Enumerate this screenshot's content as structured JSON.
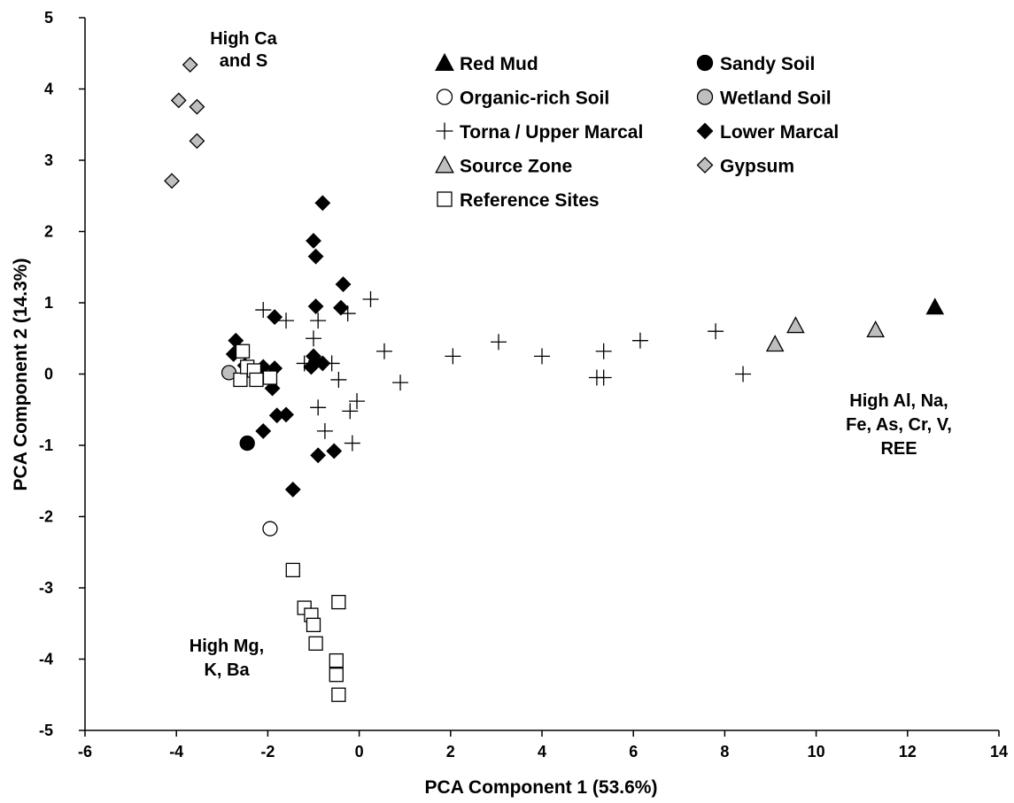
{
  "chart_data": {
    "type": "scatter",
    "title": "",
    "xlabel": "PCA Component 1 (53.6%)",
    "ylabel": "PCA Component 2 (14.3%)",
    "xlim": [
      -6,
      14
    ],
    "ylim": [
      -5,
      5
    ],
    "xticks": [
      -6,
      -4,
      -2,
      0,
      2,
      4,
      6,
      8,
      10,
      12,
      14
    ],
    "yticks": [
      -5,
      -4,
      -3,
      -2,
      -1,
      0,
      1,
      2,
      3,
      4,
      5
    ],
    "xtick_labels": [
      "-6",
      "-4",
      "-2",
      "0",
      "2",
      "4",
      "6",
      "8",
      "10",
      "12",
      "14"
    ],
    "ytick_labels": [
      "-5",
      "-4",
      "-3",
      "-2",
      "-1",
      "0",
      "1",
      "2",
      "3",
      "4",
      "5"
    ],
    "grid": false,
    "legend_position": "top-center",
    "series": [
      {
        "name": "Red Mud",
        "marker": "triangle",
        "fill": "#000000",
        "stroke": "#000000",
        "points": [
          [
            12.6,
            0.94
          ]
        ]
      },
      {
        "name": "Sandy Soil",
        "marker": "circle",
        "fill": "#000000",
        "stroke": "#000000",
        "points": [
          [
            -2.45,
            -0.97
          ]
        ]
      },
      {
        "name": "Organic-rich Soil",
        "marker": "circle",
        "fill": "#ffffff",
        "stroke": "#000000",
        "points": [
          [
            -1.95,
            -2.17
          ]
        ]
      },
      {
        "name": "Wetland Soil",
        "marker": "circle",
        "fill": "#bfbfbf",
        "stroke": "#000000",
        "points": [
          [
            -2.85,
            0.02
          ]
        ]
      },
      {
        "name": "Torna / Upper Marcal",
        "marker": "plus",
        "fill": "none",
        "stroke": "#000000",
        "points": [
          [
            -2.1,
            0.9
          ],
          [
            -1.6,
            0.75
          ],
          [
            -0.9,
            0.75
          ],
          [
            -0.25,
            0.85
          ],
          [
            0.25,
            1.05
          ],
          [
            -1.0,
            0.5
          ],
          [
            -1.2,
            0.15
          ],
          [
            -0.6,
            0.15
          ],
          [
            -0.45,
            -0.08
          ],
          [
            -0.9,
            -0.47
          ],
          [
            -0.75,
            -0.8
          ],
          [
            -0.2,
            -0.52
          ],
          [
            -0.05,
            -0.38
          ],
          [
            -0.15,
            -0.97
          ],
          [
            0.55,
            0.32
          ],
          [
            0.9,
            -0.12
          ],
          [
            2.05,
            0.25
          ],
          [
            3.05,
            0.45
          ],
          [
            4.0,
            0.25
          ],
          [
            5.2,
            -0.05
          ],
          [
            5.35,
            -0.05
          ],
          [
            5.35,
            0.32
          ],
          [
            6.15,
            0.47
          ],
          [
            7.8,
            0.6
          ],
          [
            8.4,
            0.0
          ]
        ]
      },
      {
        "name": "Lower Marcal",
        "marker": "diamond",
        "fill": "#000000",
        "stroke": "#000000",
        "points": [
          [
            -2.7,
            0.47
          ],
          [
            -2.75,
            0.28
          ],
          [
            -2.5,
            0.12
          ],
          [
            -2.35,
            0.02
          ],
          [
            -2.1,
            0.1
          ],
          [
            -1.9,
            -0.2
          ],
          [
            -1.85,
            0.08
          ],
          [
            -1.85,
            0.8
          ],
          [
            -1.8,
            -0.58
          ],
          [
            -1.6,
            -0.57
          ],
          [
            -2.1,
            -0.8
          ],
          [
            -1.45,
            -1.62
          ],
          [
            -1.0,
            0.25
          ],
          [
            -1.05,
            0.1
          ],
          [
            -0.95,
            0.18
          ],
          [
            -0.8,
            0.15
          ],
          [
            -0.95,
            0.95
          ],
          [
            -0.95,
            1.65
          ],
          [
            -1.0,
            1.87
          ],
          [
            -0.8,
            2.4
          ],
          [
            -0.35,
            1.26
          ],
          [
            -0.4,
            0.93
          ],
          [
            -0.9,
            -1.14
          ],
          [
            -0.55,
            -1.08
          ]
        ]
      },
      {
        "name": "Source Zone",
        "marker": "triangle",
        "fill": "#bfbfbf",
        "stroke": "#000000",
        "points": [
          [
            9.1,
            0.42
          ],
          [
            9.55,
            0.68
          ],
          [
            11.3,
            0.62
          ]
        ]
      },
      {
        "name": "Gypsum",
        "marker": "diamond",
        "fill": "#bfbfbf",
        "stroke": "#000000",
        "points": [
          [
            -3.7,
            4.34
          ],
          [
            -3.95,
            3.84
          ],
          [
            -3.55,
            3.75
          ],
          [
            -3.55,
            3.27
          ],
          [
            -4.1,
            2.71
          ]
        ]
      },
      {
        "name": "Reference Sites",
        "marker": "square",
        "fill": "#ffffff",
        "stroke": "#000000",
        "points": [
          [
            -2.55,
            0.32
          ],
          [
            -2.6,
            -0.08
          ],
          [
            -2.45,
            0.1
          ],
          [
            -2.3,
            0.05
          ],
          [
            -2.25,
            -0.08
          ],
          [
            -1.95,
            -0.05
          ],
          [
            -1.45,
            -2.75
          ],
          [
            -1.2,
            -3.28
          ],
          [
            -1.05,
            -3.38
          ],
          [
            -1.0,
            -3.52
          ],
          [
            -0.95,
            -3.78
          ],
          [
            -0.45,
            -3.2
          ],
          [
            -0.5,
            -4.02
          ],
          [
            -0.5,
            -4.22
          ],
          [
            -0.45,
            -4.5
          ]
        ]
      }
    ],
    "annotations": [
      {
        "lines": [
          "High Ca",
          "and S"
        ]
      },
      {
        "lines": [
          "High Al, Na,",
          "Fe, As, Cr, V,",
          "REE"
        ]
      },
      {
        "lines": [
          "High Mg,",
          "K, Ba"
        ]
      }
    ]
  }
}
